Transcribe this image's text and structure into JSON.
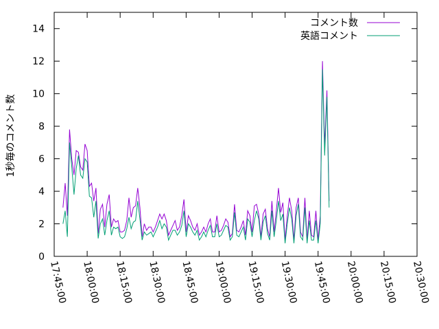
{
  "chart_data": {
    "type": "line",
    "title": "",
    "xlabel": "",
    "ylabel": "1秒毎のコメント数",
    "ylim": [
      0,
      15
    ],
    "xlim": [
      "17:45:00",
      "20:30:00"
    ],
    "grid": false,
    "legend_position": "top-right",
    "y_ticks": [
      "0",
      "2",
      "4",
      "6",
      "8",
      "10",
      "12",
      "14"
    ],
    "x_ticks": [
      "17:45:00",
      "18:00:00",
      "18:15:00",
      "18:30:00",
      "18:45:00",
      "19:00:00",
      "19:15:00",
      "19:30:00",
      "19:45:00",
      "20:00:00",
      "20:15:00",
      "20:30:00"
    ],
    "series": [
      {
        "name": "コメント数",
        "color": "#9400d3",
        "points": [
          [
            "17:49:00",
            3.0
          ],
          [
            "17:50:00",
            4.5
          ],
          [
            "17:51:00",
            2.5
          ],
          [
            "17:52:00",
            7.8
          ],
          [
            "17:53:00",
            6.0
          ],
          [
            "17:54:00",
            5.0
          ],
          [
            "17:55:00",
            6.5
          ],
          [
            "17:56:00",
            6.4
          ],
          [
            "17:57:00",
            5.5
          ],
          [
            "17:58:00",
            5.3
          ],
          [
            "17:59:00",
            6.9
          ],
          [
            "18:00:00",
            6.5
          ],
          [
            "18:01:00",
            4.3
          ],
          [
            "18:02:00",
            4.5
          ],
          [
            "18:03:00",
            3.4
          ],
          [
            "18:04:00",
            4.2
          ],
          [
            "18:05:00",
            1.4
          ],
          [
            "18:06:00",
            2.9
          ],
          [
            "18:07:00",
            3.2
          ],
          [
            "18:08:00",
            1.8
          ],
          [
            "18:09:00",
            3.2
          ],
          [
            "18:10:00",
            3.8
          ],
          [
            "18:11:00",
            1.8
          ],
          [
            "18:12:00",
            2.3
          ],
          [
            "18:13:00",
            2.1
          ],
          [
            "18:14:00",
            2.2
          ],
          [
            "18:15:00",
            1.5
          ],
          [
            "18:16:00",
            1.5
          ],
          [
            "18:17:00",
            1.6
          ],
          [
            "18:18:00",
            2.2
          ],
          [
            "18:19:00",
            3.6
          ],
          [
            "18:20:00",
            2.4
          ],
          [
            "18:21:00",
            3.0
          ],
          [
            "18:22:00",
            3.1
          ],
          [
            "18:23:00",
            4.2
          ],
          [
            "18:24:00",
            3.0
          ],
          [
            "18:25:00",
            1.2
          ],
          [
            "18:26:00",
            2.0
          ],
          [
            "18:27:00",
            1.6
          ],
          [
            "18:28:00",
            1.8
          ],
          [
            "18:29:00",
            1.8
          ],
          [
            "18:30:00",
            1.5
          ],
          [
            "18:31:00",
            1.8
          ],
          [
            "18:32:00",
            2.2
          ],
          [
            "18:33:00",
            2.6
          ],
          [
            "18:34:00",
            2.3
          ],
          [
            "18:35:00",
            2.6
          ],
          [
            "18:36:00",
            2.2
          ],
          [
            "18:37:00",
            1.3
          ],
          [
            "18:38:00",
            1.6
          ],
          [
            "18:39:00",
            1.9
          ],
          [
            "18:40:00",
            2.2
          ],
          [
            "18:41:00",
            1.6
          ],
          [
            "18:42:00",
            1.8
          ],
          [
            "18:43:00",
            2.5
          ],
          [
            "18:44:00",
            3.5
          ],
          [
            "18:45:00",
            1.5
          ],
          [
            "18:46:00",
            2.5
          ],
          [
            "18:47:00",
            2.2
          ],
          [
            "18:48:00",
            1.8
          ],
          [
            "18:49:00",
            1.6
          ],
          [
            "18:50:00",
            2.0
          ],
          [
            "18:51:00",
            1.3
          ],
          [
            "18:52:00",
            1.5
          ],
          [
            "18:53:00",
            1.8
          ],
          [
            "18:54:00",
            1.5
          ],
          [
            "18:55:00",
            2.0
          ],
          [
            "18:56:00",
            2.3
          ],
          [
            "18:57:00",
            1.5
          ],
          [
            "18:58:00",
            1.5
          ],
          [
            "18:59:00",
            2.5
          ],
          [
            "19:00:00",
            1.5
          ],
          [
            "19:01:00",
            1.6
          ],
          [
            "19:02:00",
            1.9
          ],
          [
            "19:03:00",
            2.3
          ],
          [
            "19:04:00",
            2.1
          ],
          [
            "19:05:00",
            1.2
          ],
          [
            "19:06:00",
            1.4
          ],
          [
            "19:07:00",
            3.2
          ],
          [
            "19:08:00",
            1.6
          ],
          [
            "19:09:00",
            1.5
          ],
          [
            "19:10:00",
            1.8
          ],
          [
            "19:11:00",
            2.2
          ],
          [
            "19:12:00",
            1.3
          ],
          [
            "19:13:00",
            2.8
          ],
          [
            "19:14:00",
            2.5
          ],
          [
            "19:15:00",
            1.5
          ],
          [
            "19:16:00",
            3.1
          ],
          [
            "19:17:00",
            3.2
          ],
          [
            "19:18:00",
            2.6
          ],
          [
            "19:19:00",
            1.2
          ],
          [
            "19:20:00",
            2.6
          ],
          [
            "19:21:00",
            2.9
          ],
          [
            "19:22:00",
            1.7
          ],
          [
            "19:23:00",
            1.2
          ],
          [
            "19:24:00",
            3.4
          ],
          [
            "19:25:00",
            1.5
          ],
          [
            "19:26:00",
            2.8
          ],
          [
            "19:27:00",
            4.2
          ],
          [
            "19:28:00",
            2.7
          ],
          [
            "19:29:00",
            3.3
          ],
          [
            "19:30:00",
            1.0
          ],
          [
            "19:31:00",
            2.5
          ],
          [
            "19:32:00",
            3.6
          ],
          [
            "19:33:00",
            2.8
          ],
          [
            "19:34:00",
            1.0
          ],
          [
            "19:35:00",
            3.0
          ],
          [
            "19:36:00",
            3.6
          ],
          [
            "19:37:00",
            1.5
          ],
          [
            "19:38:00",
            1.2
          ],
          [
            "19:39:00",
            3.6
          ],
          [
            "19:40:00",
            1.0
          ],
          [
            "19:41:00",
            2.8
          ],
          [
            "19:42:00",
            1.3
          ],
          [
            "19:43:00",
            1.2
          ],
          [
            "19:44:00",
            2.8
          ],
          [
            "19:45:00",
            1.0
          ],
          [
            "19:46:00",
            2.5
          ],
          [
            "19:47:00",
            12.0
          ],
          [
            "19:48:00",
            6.8
          ],
          [
            "19:49:00",
            10.2
          ],
          [
            "19:50:00",
            3.4
          ]
        ]
      },
      {
        "name": "英語コメント",
        "color": "#009e73",
        "points": [
          [
            "17:49:00",
            2.0
          ],
          [
            "17:50:00",
            2.8
          ],
          [
            "17:51:00",
            1.2
          ],
          [
            "17:52:00",
            7.0
          ],
          [
            "17:53:00",
            5.5
          ],
          [
            "17:54:00",
            3.8
          ],
          [
            "17:55:00",
            5.4
          ],
          [
            "17:56:00",
            6.2
          ],
          [
            "17:57:00",
            5.0
          ],
          [
            "17:58:00",
            4.8
          ],
          [
            "17:59:00",
            6.0
          ],
          [
            "18:00:00",
            5.8
          ],
          [
            "18:01:00",
            3.7
          ],
          [
            "18:02:00",
            3.6
          ],
          [
            "18:03:00",
            2.4
          ],
          [
            "18:04:00",
            3.4
          ],
          [
            "18:05:00",
            1.1
          ],
          [
            "18:06:00",
            2.0
          ],
          [
            "18:07:00",
            2.3
          ],
          [
            "18:08:00",
            1.3
          ],
          [
            "18:09:00",
            2.2
          ],
          [
            "18:10:00",
            2.8
          ],
          [
            "18:11:00",
            1.3
          ],
          [
            "18:12:00",
            1.8
          ],
          [
            "18:13:00",
            1.7
          ],
          [
            "18:14:00",
            1.8
          ],
          [
            "18:15:00",
            1.2
          ],
          [
            "18:16:00",
            1.1
          ],
          [
            "18:17:00",
            1.2
          ],
          [
            "18:18:00",
            1.7
          ],
          [
            "18:19:00",
            2.4
          ],
          [
            "18:20:00",
            1.7
          ],
          [
            "18:21:00",
            2.1
          ],
          [
            "18:22:00",
            2.2
          ],
          [
            "18:23:00",
            3.4
          ],
          [
            "18:24:00",
            2.3
          ],
          [
            "18:25:00",
            1.0
          ],
          [
            "18:26:00",
            1.5
          ],
          [
            "18:27:00",
            1.3
          ],
          [
            "18:28:00",
            1.4
          ],
          [
            "18:29:00",
            1.5
          ],
          [
            "18:30:00",
            1.2
          ],
          [
            "18:31:00",
            1.5
          ],
          [
            "18:32:00",
            1.8
          ],
          [
            "18:33:00",
            2.2
          ],
          [
            "18:34:00",
            1.7
          ],
          [
            "18:35:00",
            2.0
          ],
          [
            "18:36:00",
            1.8
          ],
          [
            "18:37:00",
            1.0
          ],
          [
            "18:38:00",
            1.3
          ],
          [
            "18:39:00",
            1.6
          ],
          [
            "18:40:00",
            1.6
          ],
          [
            "18:41:00",
            1.3
          ],
          [
            "18:42:00",
            1.5
          ],
          [
            "18:43:00",
            1.9
          ],
          [
            "18:44:00",
            2.8
          ],
          [
            "18:45:00",
            1.2
          ],
          [
            "18:46:00",
            2.0
          ],
          [
            "18:47:00",
            1.8
          ],
          [
            "18:48:00",
            1.5
          ],
          [
            "18:49:00",
            1.3
          ],
          [
            "18:50:00",
            1.6
          ],
          [
            "18:51:00",
            1.0
          ],
          [
            "18:52:00",
            1.2
          ],
          [
            "18:53:00",
            1.5
          ],
          [
            "18:54:00",
            1.2
          ],
          [
            "18:55:00",
            1.6
          ],
          [
            "18:56:00",
            1.9
          ],
          [
            "18:57:00",
            1.2
          ],
          [
            "18:58:00",
            1.2
          ],
          [
            "18:59:00",
            2.0
          ],
          [
            "19:00:00",
            1.2
          ],
          [
            "19:01:00",
            1.3
          ],
          [
            "19:02:00",
            1.6
          ],
          [
            "19:03:00",
            1.9
          ],
          [
            "19:04:00",
            1.8
          ],
          [
            "19:05:00",
            1.0
          ],
          [
            "19:06:00",
            1.2
          ],
          [
            "19:07:00",
            2.7
          ],
          [
            "19:08:00",
            1.3
          ],
          [
            "19:09:00",
            1.2
          ],
          [
            "19:10:00",
            1.5
          ],
          [
            "19:11:00",
            1.8
          ],
          [
            "19:12:00",
            1.0
          ],
          [
            "19:13:00",
            2.3
          ],
          [
            "19:14:00",
            2.1
          ],
          [
            "19:15:00",
            1.2
          ],
          [
            "19:16:00",
            2.2
          ],
          [
            "19:17:00",
            2.8
          ],
          [
            "19:18:00",
            2.3
          ],
          [
            "19:19:00",
            1.0
          ],
          [
            "19:20:00",
            2.1
          ],
          [
            "19:21:00",
            2.5
          ],
          [
            "19:22:00",
            1.4
          ],
          [
            "19:23:00",
            1.0
          ],
          [
            "19:24:00",
            2.8
          ],
          [
            "19:25:00",
            1.2
          ],
          [
            "19:26:00",
            2.2
          ],
          [
            "19:27:00",
            3.4
          ],
          [
            "19:28:00",
            2.2
          ],
          [
            "19:29:00",
            2.6
          ],
          [
            "19:30:00",
            0.8
          ],
          [
            "19:31:00",
            2.0
          ],
          [
            "19:32:00",
            3.0
          ],
          [
            "19:33:00",
            2.3
          ],
          [
            "19:34:00",
            0.8
          ],
          [
            "19:35:00",
            2.5
          ],
          [
            "19:36:00",
            3.2
          ],
          [
            "19:37:00",
            1.2
          ],
          [
            "19:38:00",
            1.0
          ],
          [
            "19:39:00",
            3.0
          ],
          [
            "19:40:00",
            0.8
          ],
          [
            "19:41:00",
            2.2
          ],
          [
            "19:42:00",
            1.0
          ],
          [
            "19:43:00",
            1.0
          ],
          [
            "19:44:00",
            2.2
          ],
          [
            "19:45:00",
            0.8
          ],
          [
            "19:46:00",
            2.0
          ],
          [
            "19:47:00",
            11.5
          ],
          [
            "19:48:00",
            6.2
          ],
          [
            "19:49:00",
            9.8
          ],
          [
            "19:50:00",
            3.0
          ]
        ]
      }
    ]
  }
}
